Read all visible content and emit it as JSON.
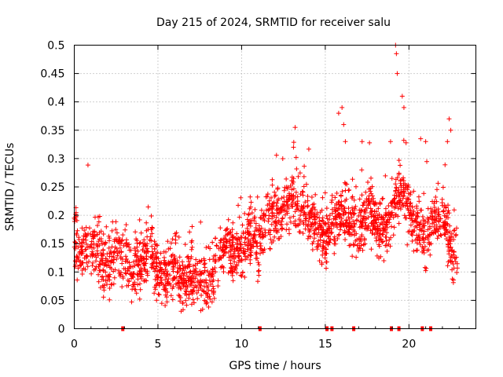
{
  "chart_data": {
    "type": "scatter",
    "title": "Day 215 of 2024, SRMTID for receiver salu",
    "xlabel": "GPS time / hours",
    "ylabel": "SRMTID / TECUs",
    "xlim": [
      0,
      24
    ],
    "ylim": [
      0,
      0.5
    ],
    "xticks": [
      0,
      5,
      10,
      15,
      20
    ],
    "yticks": [
      0,
      0.05,
      0.1,
      0.15,
      0.2,
      0.25,
      0.3,
      0.35,
      0.4,
      0.45,
      0.5
    ],
    "ytick_labels": [
      "0",
      "0.05",
      "0.1",
      "0.15",
      "0.2",
      "0.25",
      "0.3",
      "0.35",
      "0.4",
      "0.45",
      "0.5"
    ],
    "grid": true,
    "marker": "+",
    "series_color": "#ff0000",
    "trend": [
      [
        0.0,
        0.16
      ],
      [
        0.5,
        0.13
      ],
      [
        1.0,
        0.15
      ],
      [
        1.5,
        0.13
      ],
      [
        2.0,
        0.11
      ],
      [
        2.5,
        0.14
      ],
      [
        3.0,
        0.12
      ],
      [
        3.5,
        0.1
      ],
      [
        4.0,
        0.12
      ],
      [
        4.5,
        0.14
      ],
      [
        5.0,
        0.1
      ],
      [
        5.5,
        0.09
      ],
      [
        6.0,
        0.11
      ],
      [
        6.5,
        0.08
      ],
      [
        7.0,
        0.1
      ],
      [
        7.5,
        0.09
      ],
      [
        8.0,
        0.07
      ],
      [
        8.5,
        0.12
      ],
      [
        9.0,
        0.15
      ],
      [
        9.5,
        0.13
      ],
      [
        10.0,
        0.14
      ],
      [
        10.5,
        0.16
      ],
      [
        11.0,
        0.15
      ],
      [
        11.5,
        0.19
      ],
      [
        12.0,
        0.2
      ],
      [
        12.5,
        0.21
      ],
      [
        13.0,
        0.23
      ],
      [
        13.5,
        0.21
      ],
      [
        14.0,
        0.2
      ],
      [
        14.5,
        0.17
      ],
      [
        15.0,
        0.16
      ],
      [
        15.5,
        0.19
      ],
      [
        16.0,
        0.2
      ],
      [
        16.5,
        0.18
      ],
      [
        17.0,
        0.17
      ],
      [
        17.5,
        0.21
      ],
      [
        18.0,
        0.19
      ],
      [
        18.5,
        0.17
      ],
      [
        19.0,
        0.2
      ],
      [
        19.5,
        0.25
      ],
      [
        20.0,
        0.21
      ],
      [
        20.5,
        0.17
      ],
      [
        21.0,
        0.16
      ],
      [
        21.5,
        0.19
      ],
      [
        22.0,
        0.2
      ],
      [
        22.5,
        0.15
      ],
      [
        22.9,
        0.13
      ]
    ],
    "spread": 0.045,
    "point_count": 2200,
    "spikes": [
      [
        19.2,
        0.5
      ],
      [
        19.25,
        0.485
      ],
      [
        19.3,
        0.45
      ],
      [
        19.6,
        0.41
      ],
      [
        19.7,
        0.39
      ],
      [
        15.8,
        0.38
      ],
      [
        16.0,
        0.39
      ],
      [
        16.1,
        0.36
      ],
      [
        13.2,
        0.355
      ],
      [
        13.1,
        0.32
      ],
      [
        18.9,
        0.33
      ],
      [
        20.7,
        0.335
      ],
      [
        21.0,
        0.33
      ],
      [
        22.4,
        0.37
      ],
      [
        22.5,
        0.35
      ],
      [
        22.3,
        0.33
      ],
      [
        17.2,
        0.33
      ],
      [
        16.2,
        0.33
      ]
    ],
    "data_gaps_hours": [
      2.9,
      11.1,
      15.1,
      15.4,
      16.7,
      18.95,
      19.4,
      20.8,
      21.3
    ]
  }
}
